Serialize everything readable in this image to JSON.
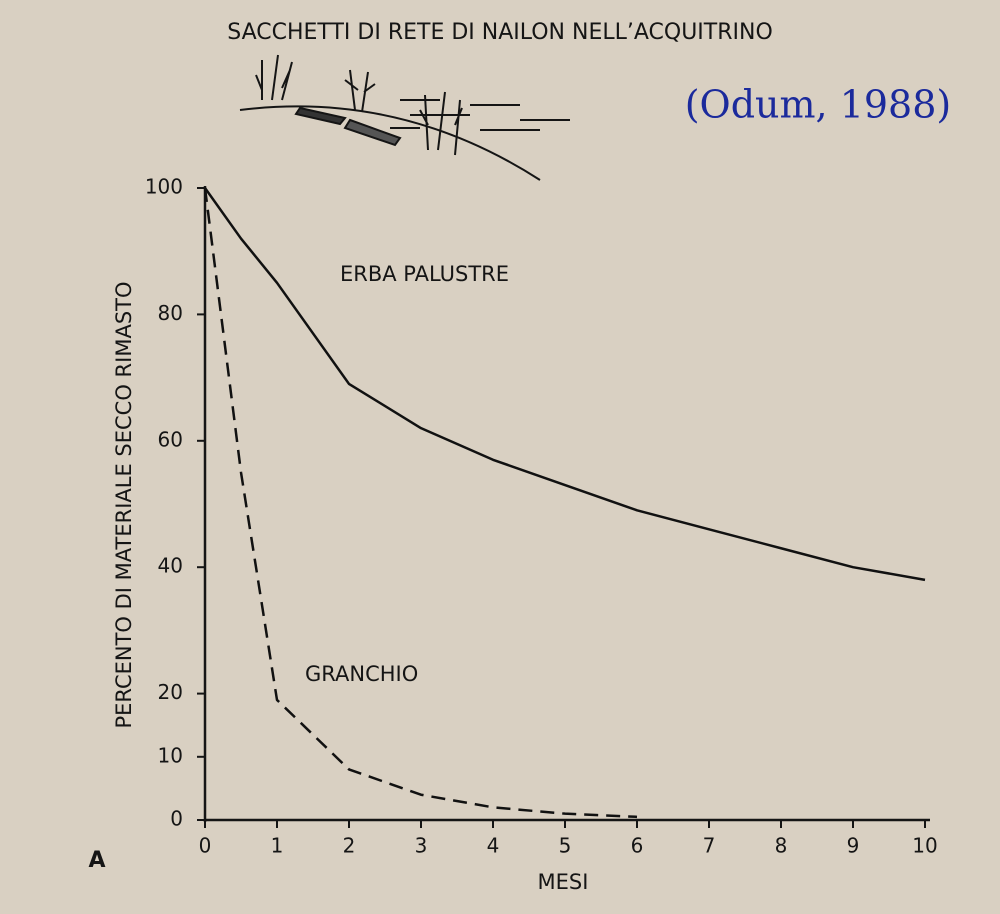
{
  "chart_data": {
    "type": "line",
    "title": "SACCHETTI DI RETE DI NAILON NELL’ACQUITRINO",
    "source": "(Odum, 1988)",
    "panel": "A",
    "x_label": "MESI",
    "y_label": "PERCENTO DI MATERIALE SECCO RIMASTO",
    "x": [
      0,
      0.5,
      1,
      2,
      3,
      4,
      5,
      6,
      7,
      8,
      9,
      10
    ],
    "series": [
      {
        "name": "ERBA PALUSTRE",
        "color": "#111111",
        "dash": false,
        "values": [
          100,
          92,
          85,
          69,
          62,
          57,
          53,
          49,
          46,
          43,
          40,
          38
        ]
      },
      {
        "name": "GRANCHIO",
        "color": "#111111",
        "dash": true,
        "values": [
          100,
          55,
          19,
          8,
          4,
          2,
          1,
          0.5,
          null,
          null,
          null,
          null
        ]
      }
    ],
    "xlim": [
      0,
      10
    ],
    "xticks": [
      0,
      1,
      2,
      3,
      4,
      5,
      6,
      7,
      8,
      9,
      10
    ],
    "ylim": [
      0,
      100
    ],
    "yticks": [
      0,
      10,
      20,
      40,
      60,
      80,
      100
    ],
    "grid": false
  }
}
